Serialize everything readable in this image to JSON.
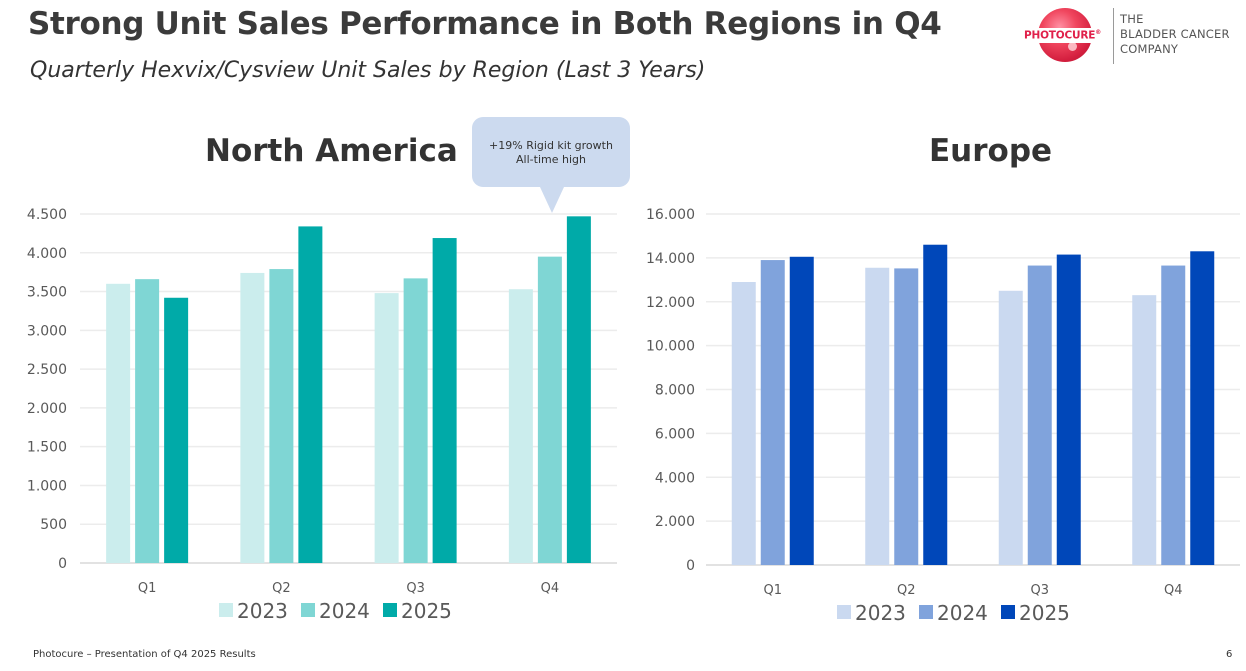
{
  "slide": {
    "title": "Strong Unit Sales Performance in Both Regions in Q4",
    "subtitle": "Quarterly Hexvix/Cysview Unit Sales by Region (Last 3 Years)",
    "footer": "Photocure – Presentation of Q4 2025 Results",
    "page_number": "6",
    "callout": {
      "line1": "+19% Rigid kit growth",
      "line2": "All-time high",
      "attached_to": "North America Q4 2025"
    }
  },
  "logo": {
    "brand": "PHOTOCURE",
    "registered": "®",
    "tagline": [
      "THE",
      "BLADDER CANCER",
      "COMPANY"
    ],
    "brand_color": "#e0204a"
  },
  "chart_data": [
    {
      "type": "bar",
      "title": "North America",
      "categories": [
        "Q1",
        "Q2",
        "Q3",
        "Q4"
      ],
      "series": [
        {
          "name": "2023",
          "color": "#cbeded",
          "values": [
            3600,
            3740,
            3480,
            3530
          ]
        },
        {
          "name": "2024",
          "color": "#7fd6d4",
          "values": [
            3660,
            3790,
            3670,
            3950
          ]
        },
        {
          "name": "2025",
          "color": "#00aaa8",
          "values": [
            3420,
            4340,
            4190,
            4470
          ]
        }
      ],
      "xlabel": "",
      "ylabel": "",
      "ylim": [
        0,
        4500
      ],
      "yticks": [
        0,
        500,
        1000,
        1500,
        2000,
        2500,
        3000,
        3500,
        4000,
        4500
      ],
      "ytick_labels": [
        "0",
        "500",
        "1.000",
        "1.500",
        "2.000",
        "2.500",
        "3.000",
        "3.500",
        "4.000",
        "4.500"
      ],
      "grid": true,
      "legend": "bottom"
    },
    {
      "type": "bar",
      "title": "Europe",
      "categories": [
        "Q1",
        "Q2",
        "Q3",
        "Q4"
      ],
      "series": [
        {
          "name": "2023",
          "color": "#cad9f0",
          "values": [
            12900,
            13550,
            12500,
            12300
          ]
        },
        {
          "name": "2024",
          "color": "#80a3dc",
          "values": [
            13900,
            13520,
            13650,
            13650
          ]
        },
        {
          "name": "2025",
          "color": "#0047b9",
          "values": [
            14050,
            14600,
            14150,
            14300
          ]
        }
      ],
      "xlabel": "",
      "ylabel": "",
      "ylim": [
        0,
        16000
      ],
      "yticks": [
        0,
        2000,
        4000,
        6000,
        8000,
        10000,
        12000,
        14000,
        16000
      ],
      "ytick_labels": [
        "0",
        "2.000",
        "4.000",
        "6.000",
        "8.000",
        "10.000",
        "12.000",
        "14.000",
        "16.000"
      ],
      "grid": true,
      "legend": "bottom"
    }
  ]
}
